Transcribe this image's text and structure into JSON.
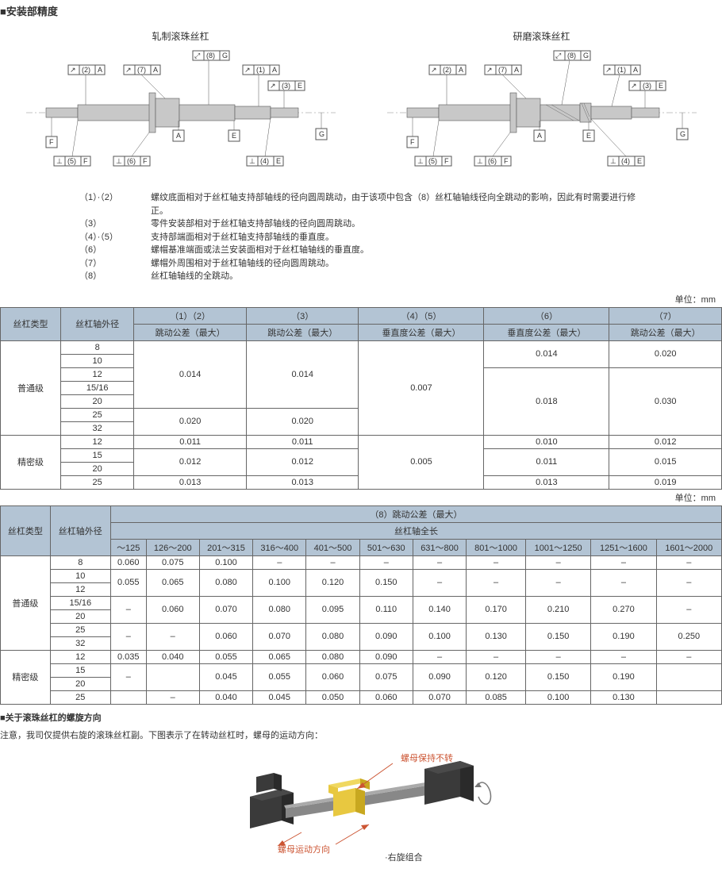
{
  "titles": {
    "section1": "■安装部精度",
    "section2": "■关于滚珠丝杠的螺旋方向",
    "diag_left": "轧制滚珠丝杠",
    "diag_right": "研磨滚珠丝杠",
    "unit": "单位：mm",
    "note_line": "注意，我司仅提供右旋的滚珠丝杠副。下图表示了在转动丝杠时，螺母的运动方向："
  },
  "callouts": {
    "c1a": "(1)",
    "c2a": "(2)",
    "c3e": "(3)",
    "c4e": "(4)",
    "c5f": "(5)",
    "c6f": "(6)",
    "c7a": "(7)",
    "c8g": "(8)",
    "A": "A",
    "E": "E",
    "F": "F",
    "G": "G"
  },
  "notes": [
    {
      "num": "（1）·（2）",
      "text": "螺纹底面相对于丝杠轴支持部轴线的径向圆周跳动，由于该项中包含（8）丝杠轴轴线径向全跳动的影响，因此有时需要进行修正。"
    },
    {
      "num": "（3）",
      "text": "零件安装部相对于丝杠轴支持部轴线的径向圆周跳动。"
    },
    {
      "num": "（4）·（5）",
      "text": "支持部端面相对于丝杠轴支持部轴线的垂直度。"
    },
    {
      "num": "（6）",
      "text": "螺帽基准端面或法兰安装面相对于丝杠轴轴线的垂直度。"
    },
    {
      "num": "（7）",
      "text": "螺帽外周围相对于丝杠轴轴线的径向圆周跳动。"
    },
    {
      "num": "（8）",
      "text": "丝杠轴轴线的全跳动。"
    }
  ],
  "table1": {
    "headers": {
      "type": "丝杠类型",
      "od": "丝杠轴外径",
      "c12a": "（1）（2）",
      "c12b": "跳动公差（最大）",
      "c3a": "（3）",
      "c3b": "跳动公差（最大）",
      "c45a": "（4）（5）",
      "c45b": "垂直度公差（最大）",
      "c6a": "（6）",
      "c6b": "垂直度公差（最大）",
      "c7a": "（7）",
      "c7b": "跳动公差（最大）"
    },
    "type_normal": "普通级",
    "type_precision": "精密级",
    "ods_normal": [
      "8",
      "10",
      "12",
      "15/16",
      "20",
      "25",
      "32"
    ],
    "ods_prec": [
      "12",
      "15",
      "20",
      "25"
    ],
    "v1n": [
      "0.014",
      "0.020"
    ],
    "v2n": [
      "0.014",
      "0.020"
    ],
    "v3n": "0.007",
    "v4n": [
      "0.014",
      "0.018"
    ],
    "v5n": [
      "0.020",
      "0.030"
    ],
    "v1p": [
      "0.011",
      "0.012",
      "0.013"
    ],
    "v2p": [
      "0.011",
      "0.012",
      "0.013"
    ],
    "v3p": "0.005",
    "v4p": [
      "0.010",
      "0.011",
      "0.013"
    ],
    "v5p": [
      "0.012",
      "0.015",
      "0.019"
    ]
  },
  "table2": {
    "headers": {
      "type": "丝杠类型",
      "od": "丝杠轴外径",
      "main": "（8）跳动公差（最大）",
      "sub": "丝杠轴全长",
      "ranges": [
        "～125",
        "126～200",
        "201～315",
        "316～400",
        "401～500",
        "501～630",
        "631～800",
        "801～1000",
        "1001～1250",
        "1251～1600",
        "1601～2000"
      ]
    },
    "type_normal": "普通级",
    "type_precision": "精密级",
    "ods_normal": [
      "8",
      "10",
      "12",
      "15/16",
      "20",
      "25",
      "32"
    ],
    "ods_prec": [
      "12",
      "15",
      "20",
      "25"
    ],
    "rows_normal": [
      [
        "0.060",
        "0.075",
        "0.100",
        "–",
        "–",
        "–",
        "–",
        "–",
        "–",
        "–",
        "–"
      ],
      [
        "0.055",
        "0.065",
        "0.080",
        "0.100",
        "0.120",
        "0.150",
        "–",
        "–",
        "–",
        "–",
        "–"
      ],
      [
        "–",
        "0.060",
        "0.070",
        "0.080",
        "0.095",
        "0.110",
        "0.140",
        "0.170",
        "0.210",
        "0.270",
        "–"
      ],
      [
        "–",
        "–",
        "0.060",
        "0.070",
        "0.080",
        "0.090",
        "0.100",
        "0.130",
        "0.150",
        "0.190",
        "0.250"
      ]
    ],
    "rows_prec": [
      [
        "0.035",
        "0.040",
        "0.055",
        "0.065",
        "0.080",
        "0.090",
        "–",
        "–",
        "–",
        "–",
        "–"
      ],
      [
        "–",
        "",
        "0.045",
        "0.055",
        "0.060",
        "0.075",
        "0.090",
        "0.120",
        "0.150",
        "0.190",
        ""
      ],
      [
        "",
        "–",
        "0.040",
        "0.045",
        "0.050",
        "0.060",
        "0.070",
        "0.085",
        "0.100",
        "0.130",
        ""
      ]
    ]
  },
  "direction": {
    "label1": "螺母保持不转",
    "label2": "螺母运动方向",
    "label3": "·右旋组合"
  },
  "colors": {
    "shaft": "#c8c8c8",
    "shaft_dark": "#888",
    "box_stroke": "#555",
    "centerline": "#888",
    "block": "#3a3a3a",
    "nut_yellow": "#e8c840",
    "text_red": "#cc5533"
  }
}
